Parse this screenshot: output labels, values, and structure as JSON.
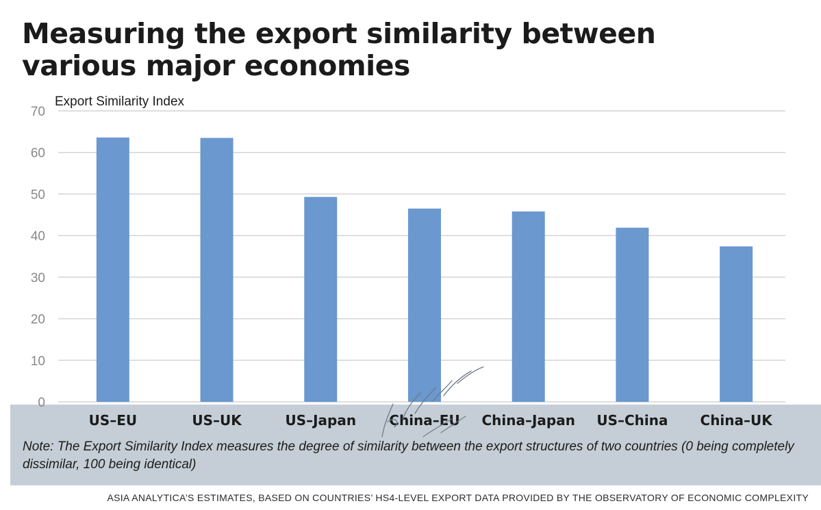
{
  "chart_data": {
    "type": "bar",
    "title": "Measuring the export similarity between various major economies",
    "ylabel": "Export Similarity Index",
    "xlabel": "",
    "categories": [
      "US–EU",
      "US–UK",
      "US–Japan",
      "China–EU",
      "China–Japan",
      "US–China",
      "China–UK"
    ],
    "values": [
      63.6,
      63.5,
      49.3,
      46.5,
      45.8,
      41.9,
      37.4
    ],
    "ylim": [
      0,
      70
    ],
    "yticks": [
      "0",
      "10",
      "20",
      "30",
      "40",
      "50",
      "60",
      "70"
    ],
    "grid": true,
    "bar_color": "#6a98cf"
  },
  "note": "Note: The Export Similarity Index measures the degree of similarity between the export structures of two countries (0 being completely dissimilar, 100 being identical)",
  "source": "ASIA ANALYTICA’S ESTIMATES, BASED ON COUNTRIES’ HS4-LEVEL EXPORT DATA PROVIDED BY THE OBSERVATORY OF ECONOMIC COMPLEXITY",
  "note_band_color": "#c5ced6"
}
